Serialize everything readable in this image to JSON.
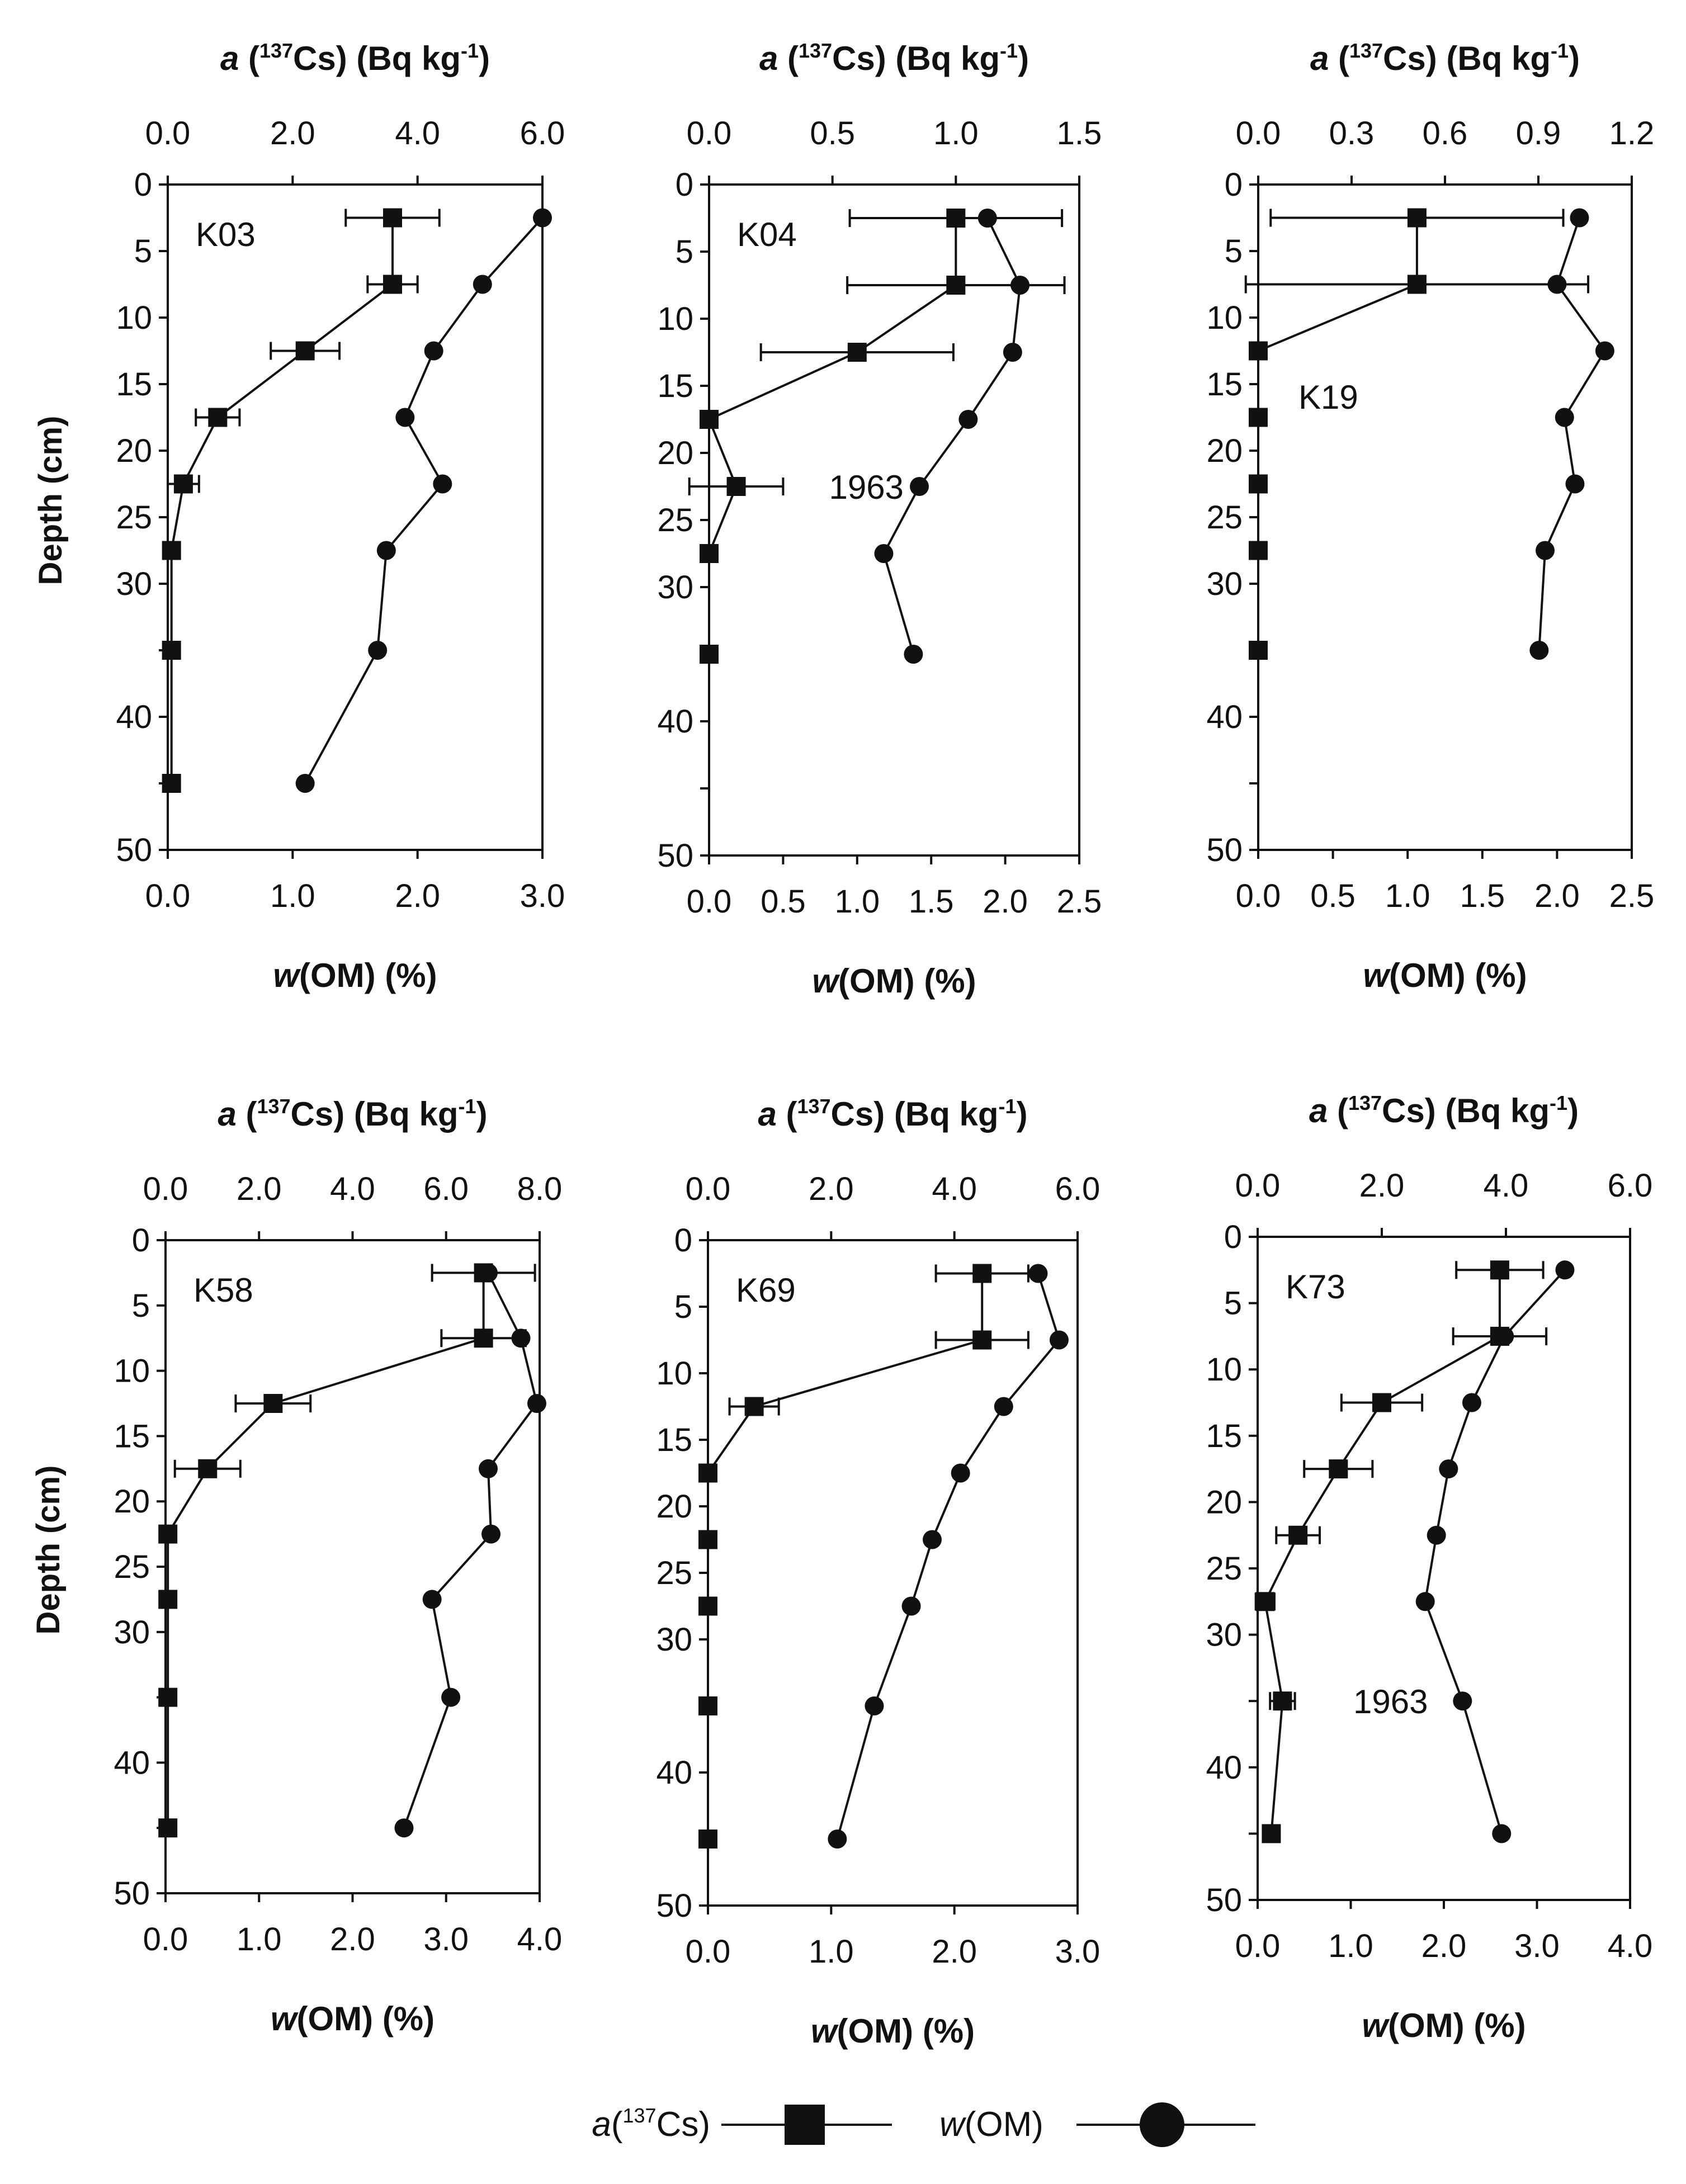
{
  "chart_data": {
    "type": "line",
    "figure": "Depth profiles of 137Cs activity and organic matter content",
    "legend": {
      "placement": "bottom-center",
      "items": [
        {
          "label_italic": "a",
          "label_paren": "(",
          "label_sup": "137",
          "label_rest": "Cs)",
          "marker": "square"
        },
        {
          "label_italic": "w",
          "label_rest": "(OM)",
          "marker": "circle"
        }
      ]
    },
    "yaxis": {
      "label": "Depth (cm)",
      "ylim": [
        0,
        50
      ],
      "ticks": [
        0,
        5,
        10,
        15,
        20,
        25,
        30,
        35,
        40,
        45,
        50
      ],
      "tick_labels": [
        "0",
        "5",
        "10",
        "15",
        "20",
        "25",
        "30",
        "40",
        "50"
      ],
      "tick_label_values": [
        0,
        5,
        10,
        15,
        20,
        25,
        30,
        40,
        50
      ]
    },
    "panels": [
      {
        "id": "K03",
        "label": "K03",
        "top_axis": {
          "title_italic": "a",
          "title_sup": "137",
          "title_rest": "Cs) (Bq kg",
          "title_sup2": "-1",
          "title_end": ")",
          "range": [
            0,
            6
          ],
          "ticks": [
            0,
            2,
            4,
            6
          ],
          "tick_labels": [
            "0.0",
            "2.0",
            "4.0",
            "6.0"
          ]
        },
        "bottom_axis": {
          "title_italic": "w",
          "title_rest": "(OM) (%)",
          "range": [
            0,
            3
          ],
          "ticks": [
            0,
            1,
            2,
            3
          ],
          "tick_labels": [
            "0.0",
            "1.0",
            "2.0",
            "3.0"
          ]
        },
        "cs": {
          "depth": [
            2.5,
            7.5,
            12.5,
            17.5,
            22.5,
            27.5,
            35,
            45
          ],
          "values": [
            3.6,
            3.6,
            2.2,
            0.8,
            0.25,
            0.06,
            0.06,
            0.06
          ],
          "errors": [
            0.75,
            0.4,
            0.55,
            0.35,
            0.25,
            0,
            0,
            0
          ]
        },
        "om": {
          "depth": [
            2.5,
            7.5,
            12.5,
            17.5,
            22.5,
            27.5,
            35,
            45
          ],
          "values": [
            3.0,
            2.52,
            2.13,
            1.9,
            2.2,
            1.75,
            1.68,
            1.1
          ]
        },
        "annotation": null
      },
      {
        "id": "K04",
        "label": "K04",
        "top_axis": {
          "title_italic": "a",
          "title_sup": "137",
          "title_rest": "Cs) (Bq kg",
          "title_sup2": "-1",
          "title_end": ")",
          "range": [
            0,
            1.5
          ],
          "ticks": [
            0,
            0.5,
            1.0,
            1.5
          ],
          "tick_labels": [
            "0.0",
            "0.5",
            "1.0",
            "1.5"
          ]
        },
        "bottom_axis": {
          "title_italic": "w",
          "title_rest": "(OM) (%)",
          "range": [
            0,
            2.5
          ],
          "ticks": [
            0,
            0.5,
            1.0,
            1.5,
            2.0,
            2.5
          ],
          "tick_labels": [
            "0.0",
            "0.5",
            "1.0",
            "1.5",
            "2.0",
            "2.5"
          ]
        },
        "cs": {
          "depth": [
            2.5,
            7.5,
            12.5,
            17.5,
            22.5,
            27.5,
            35
          ],
          "values": [
            1.0,
            1.0,
            0.6,
            0.0,
            0.11,
            0.0,
            0.0
          ],
          "errors": [
            0.43,
            0.44,
            0.39,
            0,
            0.19,
            0,
            0
          ]
        },
        "om": {
          "depth": [
            2.5,
            7.5,
            12.5,
            17.5,
            22.5,
            27.5,
            35
          ],
          "values": [
            1.88,
            2.1,
            2.05,
            1.75,
            1.42,
            1.18,
            1.38
          ]
        },
        "annotation": {
          "text": "1963",
          "depth": 22.5,
          "x_value": 0.35,
          "axis": "cs"
        }
      },
      {
        "id": "K19",
        "label": "K19",
        "top_axis": {
          "title_italic": "a",
          "title_sup": "137",
          "title_rest": "Cs) (Bq kg",
          "title_sup2": "-1",
          "title_end": ")",
          "range": [
            0,
            1.2
          ],
          "ticks": [
            0,
            0.3,
            0.6,
            0.9,
            1.2
          ],
          "tick_labels": [
            "0.0",
            "0.3",
            "0.6",
            "0.9",
            "1.2"
          ]
        },
        "bottom_axis": {
          "title_italic": "w",
          "title_rest": "(OM) (%)",
          "range": [
            0,
            2.5
          ],
          "ticks": [
            0,
            0.5,
            1.0,
            1.5,
            2.0,
            2.5
          ],
          "tick_labels": [
            "0.0",
            "0.5",
            "1.0",
            "1.5",
            "2.0",
            "2.5"
          ]
        },
        "cs": {
          "depth": [
            2.5,
            7.5,
            12.5,
            17.5,
            22.5,
            27.5,
            35
          ],
          "values": [
            0.51,
            0.51,
            0.0,
            0.0,
            0.0,
            0.0,
            0.0
          ],
          "errors": [
            0.47,
            0.55,
            0,
            0,
            0,
            0,
            0
          ]
        },
        "om": {
          "depth": [
            2.5,
            7.5,
            12.5,
            17.5,
            22.5,
            27.5,
            35
          ],
          "values": [
            2.15,
            2.0,
            2.32,
            2.05,
            2.12,
            1.92,
            1.88
          ]
        },
        "annotation": null,
        "label_position": "mid-left"
      },
      {
        "id": "K58",
        "label": "K58",
        "top_axis": {
          "title_italic": "a",
          "title_sup": "137",
          "title_rest": "Cs) (Bq kg",
          "title_sup2": "-1",
          "title_end": ")",
          "range": [
            0,
            8
          ],
          "ticks": [
            0,
            2,
            4,
            6,
            8
          ],
          "tick_labels": [
            "0.0",
            "2.0",
            "4.0",
            "6.0",
            "8.0"
          ]
        },
        "bottom_axis": {
          "title_italic": "w",
          "title_rest": "(OM) (%)",
          "range": [
            0,
            4
          ],
          "ticks": [
            0,
            1,
            2,
            3,
            4
          ],
          "tick_labels": [
            "0.0",
            "1.0",
            "2.0",
            "3.0",
            "4.0"
          ]
        },
        "cs": {
          "depth": [
            2.5,
            7.5,
            12.5,
            17.5,
            22.5,
            27.5,
            35,
            45
          ],
          "values": [
            6.8,
            6.8,
            2.3,
            0.9,
            0.05,
            0.05,
            0.05,
            0.05
          ],
          "errors": [
            1.1,
            0.9,
            0.8,
            0.7,
            0,
            0,
            0,
            0
          ]
        },
        "om": {
          "depth": [
            2.5,
            7.5,
            12.5,
            17.5,
            22.5,
            27.5,
            35,
            45
          ],
          "values": [
            3.45,
            3.8,
            3.97,
            3.45,
            3.48,
            2.85,
            3.05,
            2.55
          ]
        },
        "annotation": null
      },
      {
        "id": "K69",
        "label": "K69",
        "top_axis": {
          "title_italic": "a",
          "title_sup": "137",
          "title_rest": "Cs) (Bq kg",
          "title_sup2": "-1",
          "title_end": ")",
          "range": [
            0,
            6
          ],
          "ticks": [
            0,
            2,
            4,
            6
          ],
          "tick_labels": [
            "0.0",
            "2.0",
            "4.0",
            "6.0"
          ]
        },
        "bottom_axis": {
          "title_italic": "w",
          "title_rest": "(OM) (%)",
          "range": [
            0,
            3
          ],
          "ticks": [
            0,
            1,
            2,
            3
          ],
          "tick_labels": [
            "0.0",
            "1.0",
            "2.0",
            "3.0"
          ]
        },
        "cs": {
          "depth": [
            2.5,
            7.5,
            12.5,
            17.5,
            22.5,
            27.5,
            35,
            45
          ],
          "values": [
            4.45,
            4.45,
            0.75,
            0.0,
            0.0,
            0.0,
            0.0,
            0.0
          ],
          "errors": [
            0.75,
            0.75,
            0.4,
            0,
            0,
            0,
            0,
            0
          ]
        },
        "om": {
          "depth": [
            2.5,
            7.5,
            12.5,
            17.5,
            22.5,
            27.5,
            35,
            45
          ],
          "values": [
            2.68,
            2.85,
            2.4,
            2.05,
            1.82,
            1.65,
            1.35,
            1.05
          ]
        },
        "annotation": null
      },
      {
        "id": "K73",
        "label": "K73",
        "top_axis": {
          "title_italic": "a",
          "title_sup": "137",
          "title_rest": "Cs) (Bq kg",
          "title_sup2": "-1",
          "title_end": ")",
          "range": [
            0,
            6
          ],
          "ticks": [
            0,
            2,
            4,
            6
          ],
          "tick_labels": [
            "0.0",
            "2.0",
            "4.0",
            "6.0"
          ]
        },
        "bottom_axis": {
          "title_italic": "w",
          "title_rest": "(OM) (%)",
          "range": [
            0,
            4
          ],
          "ticks": [
            0,
            1,
            2,
            3,
            4
          ],
          "tick_labels": [
            "0.0",
            "1.0",
            "2.0",
            "3.0",
            "4.0"
          ]
        },
        "cs": {
          "depth": [
            2.5,
            7.5,
            12.5,
            17.5,
            22.5,
            27.5,
            35,
            45
          ],
          "values": [
            3.9,
            3.9,
            2.0,
            1.3,
            0.65,
            0.12,
            0.4,
            0.22
          ],
          "errors": [
            0.7,
            0.75,
            0.65,
            0.55,
            0.35,
            0.15,
            0.2,
            0
          ]
        },
        "om": {
          "depth": [
            2.5,
            7.5,
            12.5,
            17.5,
            22.5,
            27.5,
            35,
            45
          ],
          "values": [
            3.3,
            2.65,
            2.3,
            2.05,
            1.92,
            1.8,
            2.2,
            2.62
          ]
        },
        "annotation": {
          "text": "1963",
          "depth": 35,
          "x_value": 1.0,
          "axis": "cs"
        }
      }
    ]
  }
}
